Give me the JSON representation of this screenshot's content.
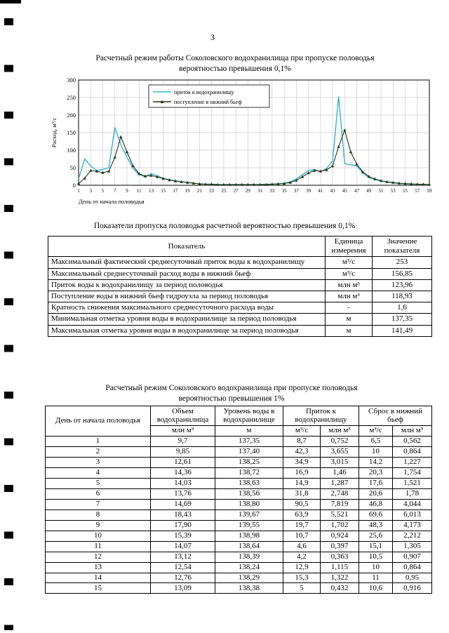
{
  "page": {
    "number": "3"
  },
  "chart": {
    "title_line1": "Расчетный режим работы Соколовского водохранилища при пропуске половодья",
    "title_line2": "вероятностью превышения 0,1%"
  },
  "chart_data": {
    "type": "line",
    "title": "Расчетный режим работы Соколовского водохранилища при пропуске половодья вероятностью превышения 0,1%",
    "xlabel": "День от начала половодья",
    "ylabel": "Расход, м³/с",
    "ylim": [
      0,
      300
    ],
    "yticks": [
      0,
      50,
      100,
      150,
      200,
      250,
      300
    ],
    "xticks": [
      1,
      3,
      5,
      7,
      9,
      11,
      13,
      15,
      17,
      19,
      21,
      23,
      25,
      27,
      29,
      31,
      33,
      35,
      37,
      39,
      41,
      43,
      45,
      47,
      49,
      51,
      53,
      55,
      57,
      59
    ],
    "x": [
      1,
      2,
      3,
      4,
      5,
      6,
      7,
      8,
      9,
      10,
      11,
      12,
      13,
      14,
      15,
      16,
      17,
      18,
      19,
      20,
      21,
      22,
      23,
      24,
      25,
      26,
      27,
      28,
      29,
      30,
      31,
      32,
      33,
      34,
      35,
      36,
      37,
      38,
      39,
      40,
      41,
      42,
      43,
      44,
      45,
      46,
      47,
      48,
      49,
      50,
      51,
      52,
      53,
      54,
      55,
      56,
      57,
      58,
      59
    ],
    "grid": true,
    "legend_position": "top-center-inside",
    "series": [
      {
        "name": "приток к водохранилищу",
        "color": "#36b3cd",
        "marker": "none",
        "values": [
          18,
          75,
          55,
          42,
          45,
          50,
          165,
          115,
          80,
          48,
          30,
          25,
          33,
          27,
          20,
          16,
          13,
          10,
          8,
          6,
          4,
          3,
          3,
          2,
          2,
          2,
          2,
          2,
          2,
          2,
          2,
          3,
          3,
          4,
          6,
          10,
          18,
          30,
          42,
          45,
          38,
          48,
          70,
          253,
          62,
          58,
          55,
          35,
          22,
          16,
          12,
          9,
          7,
          5,
          4,
          3,
          3,
          2,
          2
        ]
      },
      {
        "name": "поступление в нижний бьеф",
        "color": "#2a3317",
        "marker": "triangle",
        "values": [
          5,
          20,
          42,
          40,
          36,
          40,
          80,
          138,
          95,
          55,
          33,
          26,
          28,
          24,
          19,
          15,
          12,
          10,
          8,
          6,
          4,
          3,
          3,
          2,
          2,
          2,
          2,
          2,
          2,
          2,
          2,
          2,
          3,
          4,
          5,
          8,
          14,
          24,
          35,
          42,
          40,
          44,
          55,
          110,
          157,
          95,
          60,
          38,
          25,
          18,
          13,
          10,
          8,
          6,
          5,
          4,
          3,
          3,
          2
        ]
      }
    ]
  },
  "table1": {
    "title": "Показатели пропуска половодья расчетной вероятностью превышения 0,1%",
    "headers": [
      "Показатель",
      "Единица измерения",
      "Значение показателя"
    ],
    "rows": [
      [
        "Максимальный фактический среднесуточный приток воды к водохранилищу",
        "м³/с",
        "253"
      ],
      [
        "Максимальный среднесуточный расход воды в нижний бьеф",
        "м³/с",
        "156,85"
      ],
      [
        "Приток воды к водохранилищу за период половодья",
        "млн м³",
        "123,96"
      ],
      [
        "Поступление воды в нижний бьеф гидроузла за период половодья",
        "млн м³",
        "118,93"
      ],
      [
        "Кратность снижения максимального среднесуточного расхода воды",
        "-",
        "1,6"
      ],
      [
        "Минимальная отметка уровня воды в водохранилище за период половодья",
        "м",
        "137,35"
      ],
      [
        "Максимальная отметка уровня воды в водохранилище за период половодья",
        "м",
        "141,49"
      ]
    ]
  },
  "table2": {
    "title_line1": "Расчетный режим Соколовского водохранилища при пропуске половодья",
    "title_line2": "вероятностью превышения 1%",
    "col_day": "День от начала половодья",
    "col_volume": "Объем водохранилища",
    "col_level": "Уровень воды в водохранилище",
    "col_inflow": "Приток к водохранилищу",
    "col_outflow": "Сброс в нижний бьеф",
    "unit_mln": "млн м³",
    "unit_m": "м",
    "unit_m3s": "м³/с",
    "rows": [
      [
        "1",
        "9,7",
        "137,35",
        "8,7",
        "0,752",
        "6,5",
        "0,562"
      ],
      [
        "2",
        "9,85",
        "137,40",
        "42,3",
        "3,655",
        "10",
        "0,864"
      ],
      [
        "3",
        "12,61",
        "138,25",
        "34,9",
        "3,015",
        "14,2",
        "1,227"
      ],
      [
        "4",
        "14,36",
        "138,72",
        "16,9",
        "1,46",
        "20,3",
        "1,754"
      ],
      [
        "5",
        "14,03",
        "138,63",
        "14,9",
        "1,287",
        "17,6",
        "1,521"
      ],
      [
        "6",
        "13,76",
        "138,56",
        "31,8",
        "2,748",
        "20,6",
        "1,78"
      ],
      [
        "7",
        "14,69",
        "138,80",
        "90,5",
        "7,819",
        "46,8",
        "4,044"
      ],
      [
        "8",
        "18,43",
        "139,67",
        "63,9",
        "5,521",
        "69,6",
        "6,013"
      ],
      [
        "9",
        "17,90",
        "139,55",
        "19,7",
        "1,702",
        "48,3",
        "4,173"
      ],
      [
        "10",
        "15,39",
        "138,98",
        "10,7",
        "0,924",
        "25,6",
        "2,212"
      ],
      [
        "11",
        "14,07",
        "138,64",
        "4,6",
        "0,397",
        "15,1",
        "1,305"
      ],
      [
        "12",
        "13,12",
        "138,39",
        "4,2",
        "0,363",
        "10,5",
        "0,907"
      ],
      [
        "13",
        "12,54",
        "138,24",
        "12,9",
        "1,115",
        "10",
        "0,864"
      ],
      [
        "14",
        "12,76",
        "138,29",
        "15,3",
        "1,322",
        "11",
        "0,95"
      ],
      [
        "15",
        "13,09",
        "138,38",
        "5",
        "0,432",
        "10,6",
        "0,916"
      ]
    ]
  }
}
